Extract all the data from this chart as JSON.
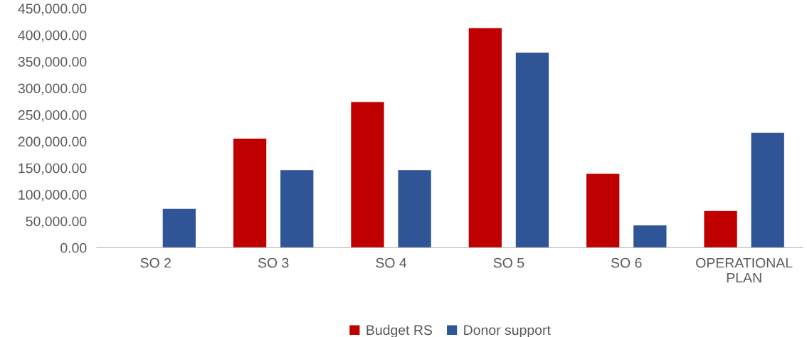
{
  "chart_data": {
    "type": "bar",
    "categories": [
      "SO 2",
      "SO 3",
      "SO 4",
      "SO 5",
      "SO 6",
      "OPERATIONAL PLAN"
    ],
    "series": [
      {
        "name": "Budget RS",
        "color": "#c00000",
        "values": [
          null,
          205000,
          274000,
          413000,
          139000,
          69000
        ]
      },
      {
        "name": "Donor support",
        "color": "#2f5597",
        "values": [
          73000,
          146000,
          146000,
          367000,
          42000,
          216000
        ]
      }
    ],
    "ylim": [
      0,
      450000
    ],
    "yticks": [
      {
        "value": 0,
        "label": "0.00"
      },
      {
        "value": 50000,
        "label": "50,000.00"
      },
      {
        "value": 100000,
        "label": "100,000.00"
      },
      {
        "value": 150000,
        "label": "150,000.00"
      },
      {
        "value": 200000,
        "label": "200,000.00"
      },
      {
        "value": 250000,
        "label": "250,000.00"
      },
      {
        "value": 300000,
        "label": "300,000.00"
      },
      {
        "value": 350000,
        "label": "350,000.00"
      },
      {
        "value": 400000,
        "label": "400,000.00"
      },
      {
        "value": 450000,
        "label": "450,000.00"
      }
    ],
    "grid": false,
    "legend": "bottom"
  }
}
